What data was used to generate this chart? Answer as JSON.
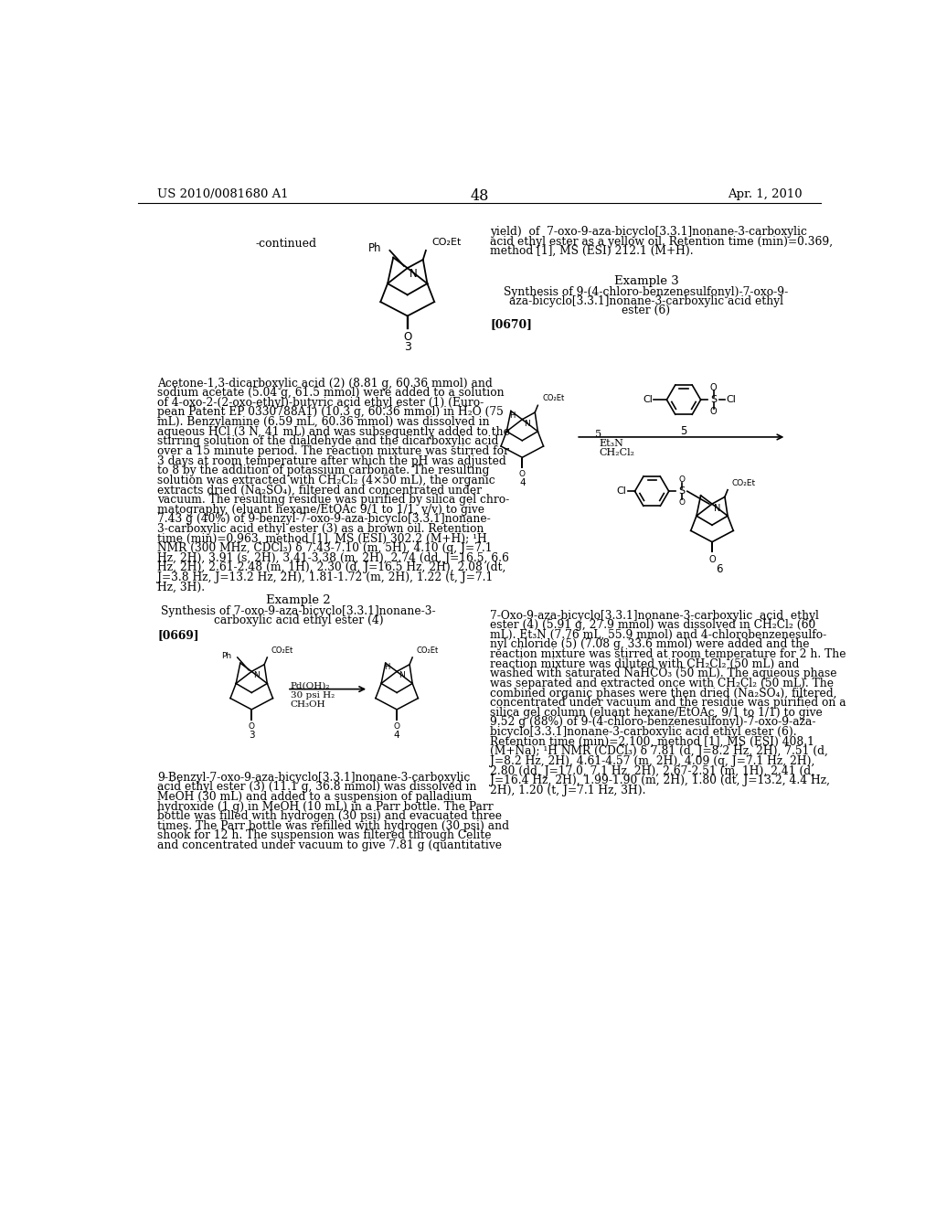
{
  "background_color": "#ffffff",
  "page_number": "48",
  "header_left": "US 2010/0081680 A1",
  "header_right": "Apr. 1, 2010",
  "continued_label": "-continued",
  "example2_title": "Example 2",
  "example2_subtitle1": "Synthesis of 7-oxo-9-aza-bicyclo[3.3.1]nonane-3-",
  "example2_subtitle2": "carboxylic acid ethyl ester (4)",
  "example2_para": "[0669]",
  "example3_title": "Example 3",
  "example3_subtitle1": "Synthesis of 9-(4-chloro-benzenesulfonyl)-7-oxo-9-",
  "example3_subtitle2": "aza-bicyclo[3.3.1]nonane-3-carboxylic acid ethyl",
  "example3_subtitle3": "ester (6)",
  "example3_para": "[0670]",
  "font_size_body": 8.8,
  "font_size_header": 9.5,
  "font_size_page_num": 11.5,
  "font_size_example_title": 9.5,
  "body_text_left_col": "Acetone-1,3-dicarboxylic acid (2) (8.81 g, 60.36 mmol) and\nsodium acetate (5.04 g, 61.5 mmol) were added to a solution\nof 4-oxo-2-(2-oxo-ethyl)-butyric acid ethyl ester (1) (Euro-\npean Patent EP 0330788A1) (10.3 g, 60.36 mmol) in H₂O (75\nmL). Benzylamine (6.59 mL, 60.36 mmol) was dissolved in\naqueous HCl (3 N, 41 mL) and was subsequently added to the\nstirring solution of the dialdehyde and the dicarboxylic acid\nover a 15 minute period. The reaction mixture was stirred for\n3 days at room temperature after which the pH was adjusted\nto 8 by the addition of potassium carbonate. The resulting\nsolution was extracted with CH₂Cl₂ (4×50 mL), the organic\nextracts dried (Na₂SO₄), filtered and concentrated under\nvacuum. The resulting residue was purified by silica gel chro-\nmatography, (eluant hexane/EtOAc 9/1 to 1/1, v/v) to give\n7.43 g (40%) of 9-benzyl-7-oxo-9-aza-bicyclo[3.3.1]nonane-\n3-carboxylic acid ethyl ester (3) as a brown oil. Retention\ntime (min)=0.963, method [1], MS (ESI) 302.2 (M+H); ¹H\nNMR (300 MHz, CDCl₃) δ 7.43-7.10 (m, 5H), 4.10 (q, J=7.1\nHz, 2H), 3.91 (s, 2H), 3.41-3.38 (m, 2H), 2.74 (dd, J=16.5, 6.6\nHz, 2H), 2.61-2.48 (m, 1H), 2.30 (d, J=16.5 Hz, 2H), 2.08 (dt,\nJ=3.8 Hz, J=13.2 Hz, 2H), 1.81-1.72 (m, 2H), 1.22 (t, J=7.1\nHz, 3H).",
  "body_text_left_bottom": "9-Benzyl-7-oxo-9-aza-bicyclo[3.3.1]nonane-3-carboxylic\nacid ethyl ester (3) (11.1 g, 36.8 mmol) was dissolved in\nMeOH (30 mL) and added to a suspension of palladium\nhydroxide (1 g) in MeOH (10 mL) in a Parr bottle. The Parr\nbottle was filled with hydrogen (30 psi) and evacuated three\ntimes. The Parr bottle was refilled with hydrogen (30 psi) and\nshook for 12 h. The suspension was filtered through Celite\nand concentrated under vacuum to give 7.81 g (quantitative",
  "body_text_right_col_top": "yield)  of  7-oxo-9-aza-bicyclo[3.3.1]nonane-3-carboxylic\nacid ethyl ester as a yellow oil. Retention time (min)=0.369,\nmethod [1], MS (ESI) 212.1 (M+H).",
  "body_text_right_col_bottom": "7-Oxo-9-aza-bicyclo[3.3.1]nonane-3-carboxylic  acid  ethyl\nester (4) (5.91 g, 27.9 mmol) was dissolved in CH₂Cl₂ (60\nmL). Et₃N (7.76 mL, 55.9 mmol) and 4-chlorobenzenesulfo-\nnyl chloride (5) (7.08 g, 33.6 mmol) were added and the\nreaction mixture was stirred at room temperature for 2 h. The\nreaction mixture was diluted with CH₂Cl₂ (50 mL) and\nwashed with saturated NaHCO₃ (50 mL). The aqueous phase\nwas separated and extracted once with CH₂Cl₂ (50 mL). The\ncombined organic phases were then dried (Na₂SO₄), filtered,\nconcentrated under vacuum and the residue was purified on a\nsilica gel column (eluant hexane/EtOAc, 9/1 to 1/1) to give\n9.52 g (88%) of 9-(4-chloro-benzenesulfonyl)-7-oxo-9-aza-\nbicyclo[3.3.1]nonane-3-carboxylic acid ethyl ester (6).\nRetention time (min)=2.100, method [1], MS (ESI) 408.1\n(M+Na); ¹H NMR (CDCl₃) δ 7.81 (d, J=8.2 Hz, 2H), 7.51 (d,\nJ=8.2 Hz, 2H), 4.61-4.57 (m, 2H), 4.09 (q, J=7.1 Hz, 2H),\n2.80 (dd, J=17.0, 7.1 Hz, 2H), 2.67-2.51 (m, 1H), 2.41 (d,\nJ=16.4 Hz, 2H), 1.99-1.90 (m, 2H), 1.80 (dt, J=13.2, 4.4 Hz,\n2H), 1.20 (t, J=7.1 Hz, 3H).",
  "arrow_label_5": "5",
  "arrow_label_top": "Et₃N",
  "arrow_label_bottom": "CH₂Cl₂",
  "pd_label1": "Pd(OH)₂",
  "pd_label2": "30 psi H₂",
  "pd_label3": "CH₃OH"
}
